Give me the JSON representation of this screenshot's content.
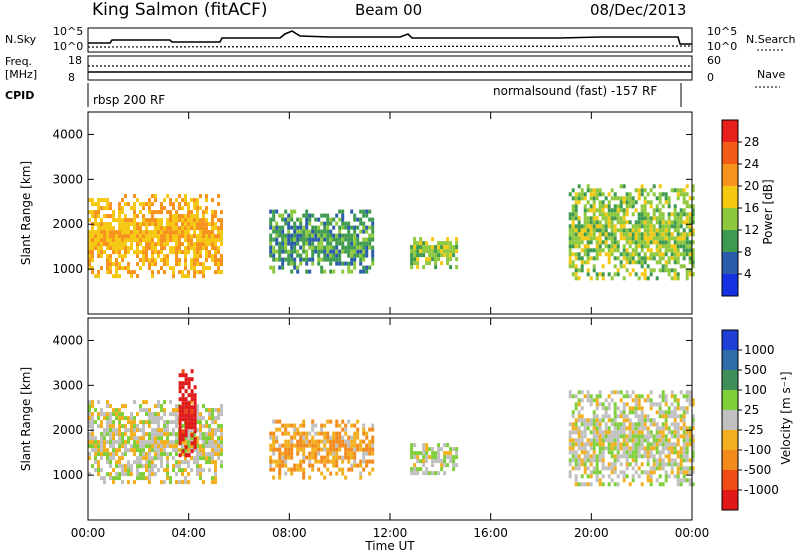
{
  "header": {
    "station": "King Salmon (fitACF)",
    "beam": "Beam 00",
    "date": "08/Dec/2013"
  },
  "status_panels": {
    "nsky_label": "N.Sky",
    "nsearch_label": "N.Search",
    "freq_label_1": "Freq.",
    "freq_label_2": "[MHz]",
    "nave_label": "Nave",
    "cpid_label": "CPID",
    "left_ticks_top": [
      "10^5",
      "10^0"
    ],
    "right_ticks_top": [
      "10^5",
      "10^0"
    ],
    "left_ticks_freq": [
      "18",
      "8"
    ],
    "right_ticks_nave": [
      "60",
      "0"
    ],
    "cpid_left": "rbsp 200 RF",
    "cpid_right": "normalsound (fast) -157 RF"
  },
  "x_axis": {
    "label": "Time UT",
    "ticks": [
      "00:00",
      "04:00",
      "08:00",
      "12:00",
      "16:00",
      "20:00",
      "00:00"
    ]
  },
  "power_scale": {
    "label": "Power [dB]",
    "ticks": [
      "28",
      "24",
      "20",
      "16",
      "12",
      "8",
      "4"
    ],
    "colors": [
      "#e8201c",
      "#f25b16",
      "#f7921a",
      "#f5c812",
      "#8ec83c",
      "#3e9a4e",
      "#2a5caa",
      "#1530e0"
    ]
  },
  "velocity_scale": {
    "label": "Velocity [m s⁻¹]",
    "ticks": [
      "1000",
      "500",
      "100",
      "25",
      "-25",
      "-100",
      "-500",
      "-1000"
    ],
    "colors": [
      "#1e3fd6",
      "#2e6ca8",
      "#3e8f5a",
      "#7fcf3a",
      "#c0c0c0",
      "#f2b01e",
      "#f38a1c",
      "#ef4c16",
      "#e01818"
    ]
  },
  "chart_data": [
    {
      "type": "heatmap",
      "title": "Power",
      "xlabel": "Time UT",
      "ylabel": "Slant Range [km]",
      "xlim": [
        "00:00",
        "24:00"
      ],
      "ylim": [
        0,
        4500
      ],
      "yticks": [
        1000,
        2000,
        3000,
        4000
      ],
      "colorbar": {
        "label": "Power [dB]",
        "range": [
          0,
          32
        ]
      },
      "echo_regions": [
        {
          "t_start": 0.0,
          "t_end": 5.3,
          "r_low": 800,
          "r_high": 2600,
          "value": 20
        },
        {
          "t_start": 7.2,
          "t_end": 11.3,
          "r_low": 900,
          "r_high": 2300,
          "value": 10
        },
        {
          "t_start": 12.8,
          "t_end": 14.6,
          "r_low": 1000,
          "r_high": 1700,
          "value": 14
        },
        {
          "t_start": 19.1,
          "t_end": 24.0,
          "r_low": 750,
          "r_high": 2800,
          "value": 14
        }
      ]
    },
    {
      "type": "heatmap",
      "title": "Velocity",
      "xlabel": "Time UT",
      "ylabel": "Slant Range [km]",
      "xlim": [
        "00:00",
        "24:00"
      ],
      "ylim": [
        0,
        4500
      ],
      "yticks": [
        1000,
        2000,
        3000,
        4000
      ],
      "colorbar": {
        "label": "Velocity [m s⁻¹]",
        "range": [
          -1000,
          1000
        ]
      },
      "echo_regions": [
        {
          "t_start": 0.0,
          "t_end": 5.3,
          "r_low": 800,
          "r_high": 2600,
          "value": 0
        },
        {
          "t_start": 3.6,
          "t_end": 4.3,
          "r_low": 1400,
          "r_high": 3300,
          "value": -1000
        },
        {
          "t_start": 7.2,
          "t_end": 11.3,
          "r_low": 900,
          "r_high": 2200,
          "value": -300
        },
        {
          "t_start": 12.8,
          "t_end": 14.6,
          "r_low": 1000,
          "r_high": 1700,
          "value": 60
        },
        {
          "t_start": 19.1,
          "t_end": 24.0,
          "r_low": 750,
          "r_high": 2800,
          "value": 0
        }
      ]
    }
  ]
}
